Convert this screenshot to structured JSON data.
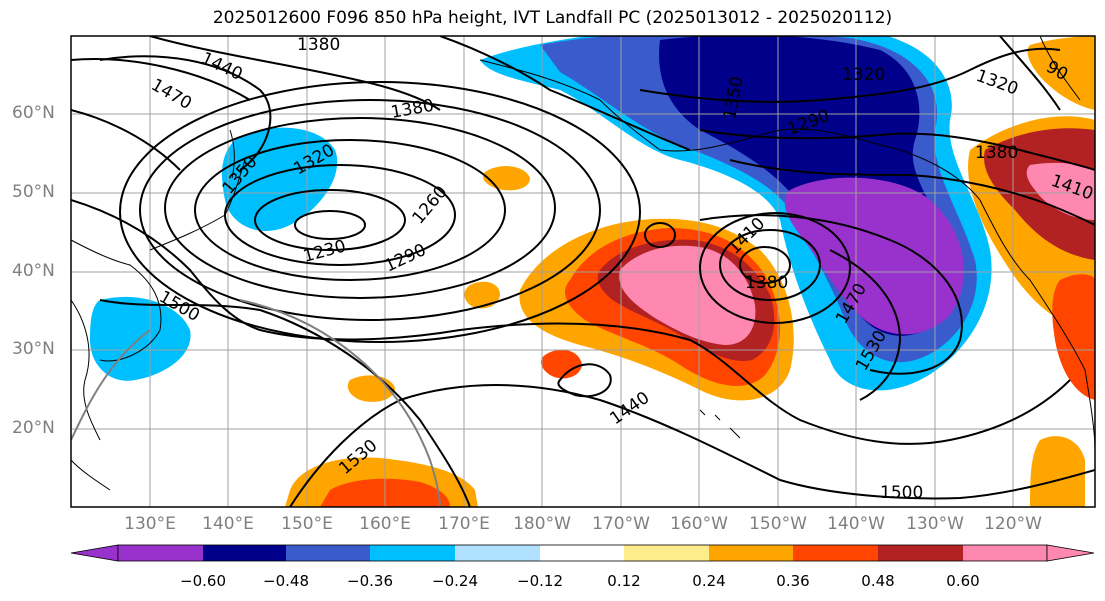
{
  "title": "2025012600 F096 850 hPa height, IVT Landfall PC (2025013012 - 2025020112)",
  "lat_labels": [
    "60°N",
    "50°N",
    "40°N",
    "30°N",
    "20°N"
  ],
  "lon_labels": [
    "130°E",
    "140°E",
    "150°E",
    "160°E",
    "170°E",
    "180°W",
    "170°W",
    "160°W",
    "150°W",
    "140°W",
    "130°W",
    "120°W"
  ],
  "contour_labels": [
    "1380",
    "1440",
    "1470",
    "1380",
    "1320",
    "1350",
    "1260",
    "1230",
    "1290",
    "1410",
    "1380",
    "1470",
    "1530",
    "1440",
    "1500",
    "1530",
    "1500",
    "1320",
    "1320",
    "1290",
    "1350",
    "1380",
    "1410",
    "90"
  ],
  "colorbar": {
    "ticks": [
      "−0.60",
      "−0.48",
      "−0.36",
      "−0.24",
      "−0.12",
      "0.12",
      "0.24",
      "0.36",
      "0.48",
      "0.60"
    ],
    "colors": [
      "#9932cc",
      "#00008b",
      "#3a5bcc",
      "#00bfff",
      "#b0e2ff",
      "#ffffff",
      "#ffec8b",
      "#ffa500",
      "#ff4500",
      "#b22222",
      "#ff88b0"
    ]
  }
}
